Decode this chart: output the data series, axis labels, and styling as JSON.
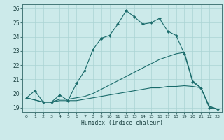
{
  "xlabel": "Humidex (Indice chaleur)",
  "background_color": "#cceaea",
  "grid_color": "#aad4d4",
  "line_color": "#1a6b6b",
  "xlim": [
    -0.5,
    23.5
  ],
  "ylim": [
    18.7,
    26.3
  ],
  "yticks": [
    19,
    20,
    21,
    22,
    23,
    24,
    25,
    26
  ],
  "xticks": [
    0,
    1,
    2,
    3,
    4,
    5,
    6,
    7,
    8,
    9,
    10,
    11,
    12,
    13,
    14,
    15,
    16,
    17,
    18,
    19,
    20,
    21,
    22,
    23
  ],
  "curve1_x": [
    0,
    1,
    2,
    3,
    4,
    5,
    6,
    7,
    8,
    9,
    10,
    11,
    12,
    13,
    14,
    15,
    16,
    17,
    18,
    19,
    20,
    21,
    22,
    23
  ],
  "curve1_y": [
    19.7,
    20.2,
    19.4,
    19.4,
    19.9,
    19.5,
    20.7,
    21.6,
    23.1,
    23.9,
    24.1,
    24.9,
    25.85,
    25.4,
    24.9,
    25.0,
    25.3,
    24.4,
    24.1,
    22.8,
    20.8,
    20.4,
    19.0,
    18.9
  ],
  "curve2_x": [
    0,
    2,
    3,
    4,
    5,
    6,
    7,
    8,
    9,
    10,
    11,
    12,
    13,
    14,
    15,
    16,
    17,
    18,
    19,
    20,
    21,
    22,
    23
  ],
  "curve2_y": [
    19.7,
    19.4,
    19.4,
    19.6,
    19.6,
    19.7,
    19.8,
    20.0,
    20.3,
    20.6,
    20.9,
    21.2,
    21.5,
    21.8,
    22.1,
    22.4,
    22.6,
    22.8,
    22.9,
    20.9,
    20.4,
    19.1,
    18.9
  ],
  "curve3_x": [
    0,
    2,
    3,
    4,
    5,
    6,
    7,
    8,
    9,
    10,
    11,
    12,
    13,
    14,
    15,
    16,
    17,
    18,
    19,
    20,
    21,
    22,
    23
  ],
  "curve3_y": [
    19.7,
    19.4,
    19.4,
    19.5,
    19.5,
    19.5,
    19.6,
    19.7,
    19.8,
    19.9,
    20.0,
    20.1,
    20.2,
    20.3,
    20.4,
    20.4,
    20.5,
    20.5,
    20.55,
    20.5,
    20.4,
    19.1,
    18.9
  ]
}
